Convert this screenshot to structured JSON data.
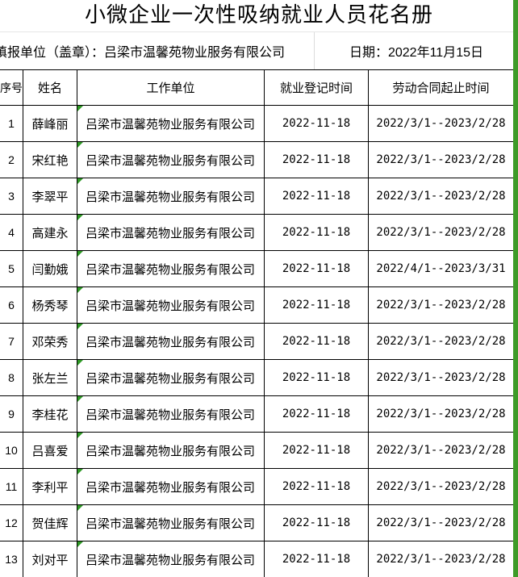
{
  "title": "小微企业一次性吸纳就业人员花名册",
  "info": {
    "unit": "填报单位（盖章）：吕梁市温馨苑物业服务有限公司",
    "date": "日期：2022年11月15日"
  },
  "table": {
    "headers": [
      "序号",
      "姓名",
      "工作单位",
      "就业登记时间",
      "劳动合同起止时间"
    ],
    "rows": [
      {
        "no": "1",
        "name": "薛峰丽",
        "company": "吕梁市温馨苑物业服务有限公司",
        "reg_date": "2022-11-18",
        "contract": "2022/3/1--2023/2/28"
      },
      {
        "no": "2",
        "name": "宋红艳",
        "company": "吕梁市温馨苑物业服务有限公司",
        "reg_date": "2022-11-18",
        "contract": "2022/3/1--2023/2/28"
      },
      {
        "no": "3",
        "name": "李翠平",
        "company": "吕梁市温馨苑物业服务有限公司",
        "reg_date": "2022-11-18",
        "contract": "2022/3/1--2023/2/28"
      },
      {
        "no": "4",
        "name": "高建永",
        "company": "吕梁市温馨苑物业服务有限公司",
        "reg_date": "2022-11-18",
        "contract": "2022/3/1--2023/2/28"
      },
      {
        "no": "5",
        "name": "闫勤娥",
        "company": "吕梁市温馨苑物业服务有限公司",
        "reg_date": "2022-11-18",
        "contract": "2022/4/1--2023/3/31"
      },
      {
        "no": "6",
        "name": "杨秀琴",
        "company": "吕梁市温馨苑物业服务有限公司",
        "reg_date": "2022-11-18",
        "contract": "2022/3/1--2023/2/28"
      },
      {
        "no": "7",
        "name": "邓荣秀",
        "company": "吕梁市温馨苑物业服务有限公司",
        "reg_date": "2022-11-18",
        "contract": "2022/3/1--2023/2/28"
      },
      {
        "no": "8",
        "name": "张左兰",
        "company": "吕梁市温馨苑物业服务有限公司",
        "reg_date": "2022-11-18",
        "contract": "2022/3/1--2023/2/28"
      },
      {
        "no": "9",
        "name": "李桂花",
        "company": "吕梁市温馨苑物业服务有限公司",
        "reg_date": "2022-11-18",
        "contract": "2022/3/1--2023/2/28"
      },
      {
        "no": "10",
        "name": "吕喜爱",
        "company": "吕梁市温馨苑物业服务有限公司",
        "reg_date": "2022-11-18",
        "contract": "2022/3/1--2023/2/28"
      },
      {
        "no": "11",
        "name": "李利平",
        "company": "吕梁市温馨苑物业服务有限公司",
        "reg_date": "2022-11-18",
        "contract": "2022/3/1--2023/2/28"
      },
      {
        "no": "12",
        "name": "贺佳辉",
        "company": "吕梁市温馨苑物业服务有限公司",
        "reg_date": "2022-11-18",
        "contract": "2022/3/1--2023/2/28"
      },
      {
        "no": "13",
        "name": "刘对平",
        "company": "吕梁市温馨苑物业服务有限公司",
        "reg_date": "2022-11-18",
        "contract": "2022/3/1--2023/2/28"
      }
    ]
  },
  "colors": {
    "corner_marker_green": "#2E9925",
    "right_bar_green": "#3E9B28",
    "grid_line": "#000000"
  }
}
